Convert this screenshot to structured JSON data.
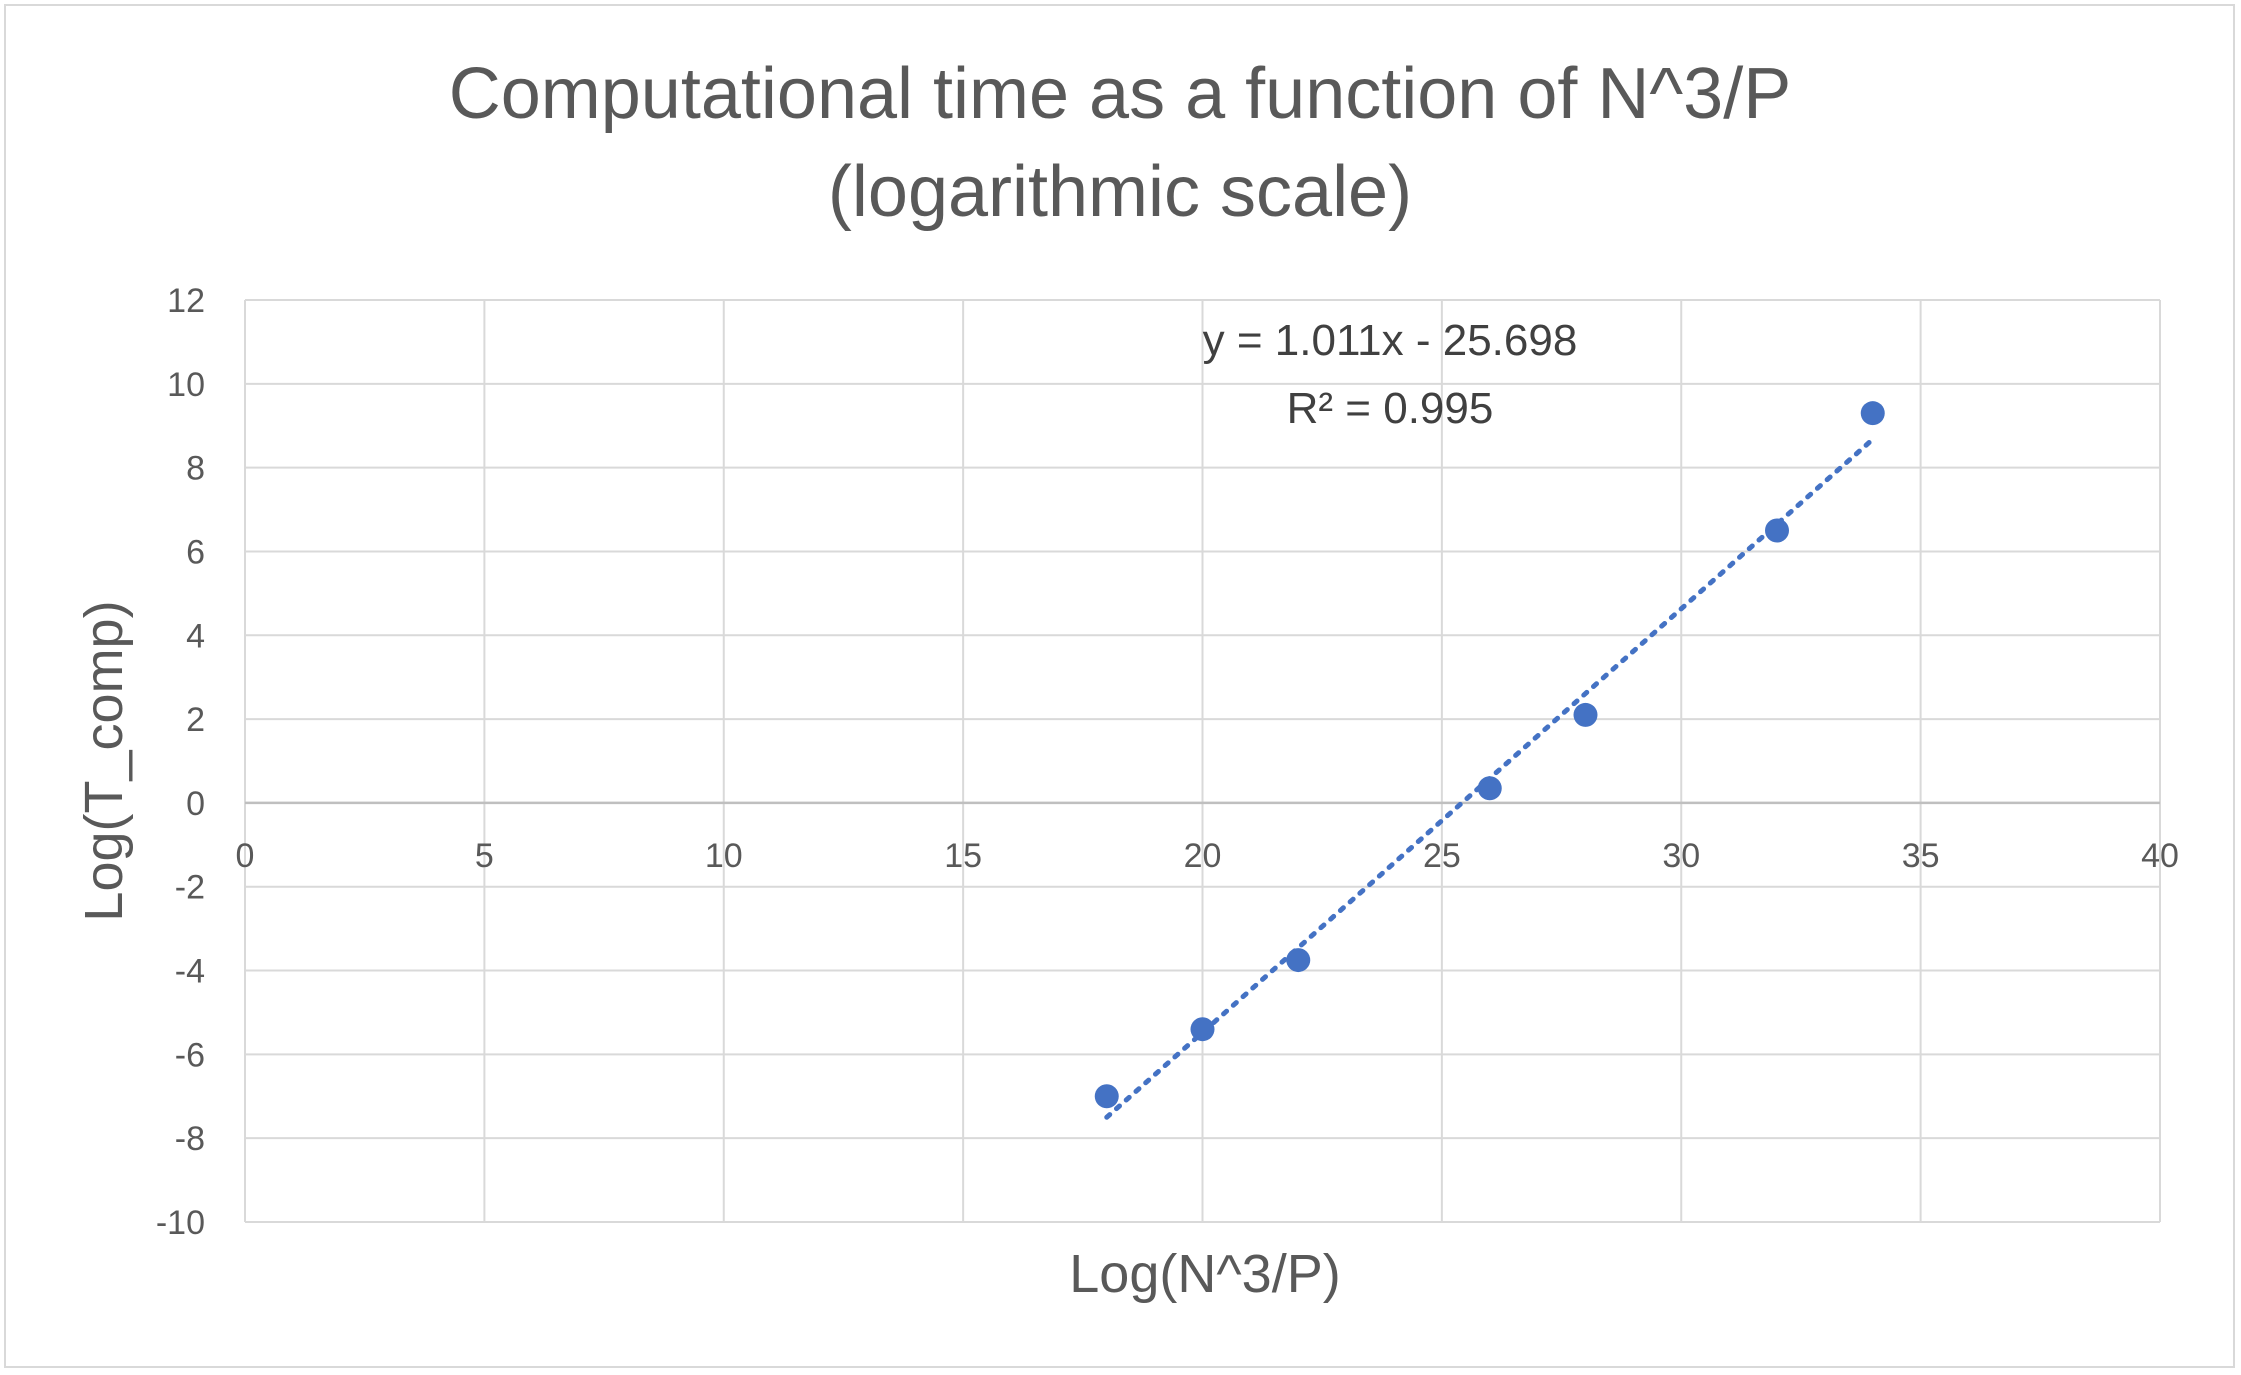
{
  "chart_data": {
    "type": "scatter",
    "title_lines": [
      "Computational time as a function of N^3/P",
      "(logarithmic scale)"
    ],
    "xlabel": "Log(N^3/P)",
    "ylabel": "Log(T_comp)",
    "xlim": [
      0,
      40
    ],
    "ylim": [
      -10,
      12
    ],
    "x_ticks": [
      0,
      5,
      10,
      15,
      20,
      25,
      30,
      35,
      40
    ],
    "y_ticks": [
      12,
      10,
      8,
      6,
      4,
      2,
      0,
      -2,
      -4,
      -6,
      -8,
      -10
    ],
    "grid": true,
    "series": [
      {
        "x": [
          18,
          20,
          22,
          26,
          28,
          32,
          34
        ],
        "y": [
          -7.0,
          -5.4,
          -3.75,
          0.35,
          2.1,
          6.5,
          9.3
        ]
      }
    ],
    "trendline": {
      "type": "linear",
      "slope": 1.011,
      "intercept": -25.698,
      "x_range": [
        18,
        34
      ],
      "equation": "y = 1.011x - 25.698",
      "r_squared": "R² = 0.995",
      "style": "dotted"
    },
    "colors": {
      "marker": "#4472c4",
      "trendline": "#4472c4",
      "grid": "#d9d9d9",
      "text": "#595959"
    }
  }
}
